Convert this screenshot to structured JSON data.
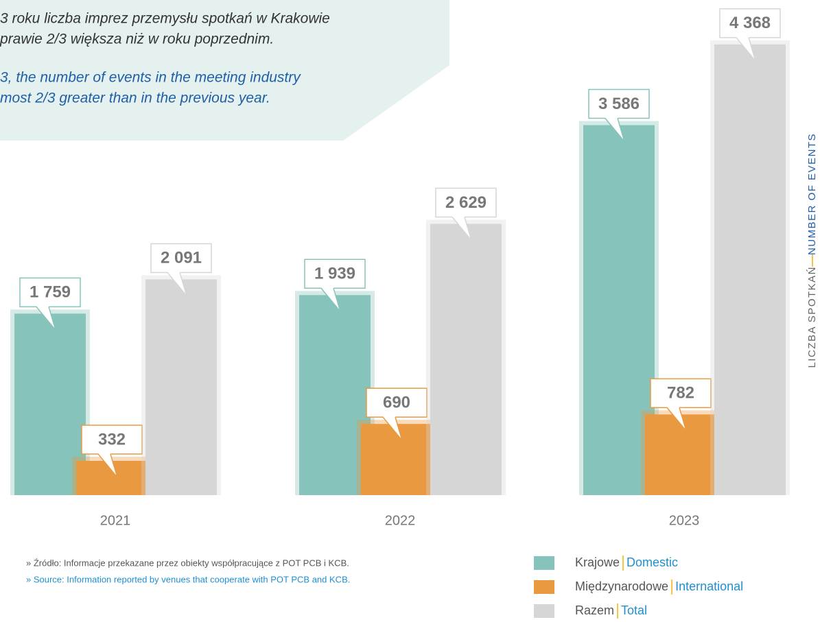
{
  "chart_data": {
    "type": "bar",
    "annotations": [
      "3 roku liczba imprez przemysłu spotkań w Krakowie",
      "prawie 2/3 większa niż w roku poprzednim.",
      "3,  the number of events in the meeting industry",
      "most 2/3 greater than in the previous year."
    ],
    "ylabel": "LICZBA SPOTKAŃ",
    "ylabel_en": "NUMBER OF EVENTS",
    "categories": [
      "2021",
      "2022",
      "2023"
    ],
    "series": [
      {
        "name": "Krajowe",
        "name_en": "Domestic",
        "color": "#86c3bb",
        "values": [
          1759,
          1939,
          3586
        ],
        "value_labels": [
          "1 759",
          "1 939",
          "3 586"
        ]
      },
      {
        "name": "Międzynarodowe",
        "name_en": "International",
        "color": "#e9993f",
        "values": [
          332,
          690,
          782
        ],
        "value_labels": [
          "332",
          "690",
          "782"
        ]
      },
      {
        "name": "Razem",
        "name_en": "Total",
        "color": "#d6d6d6",
        "values": [
          2091,
          2629,
          4368
        ],
        "value_labels": [
          "2 091",
          "2 629",
          "4 368"
        ]
      }
    ],
    "ylim": [
      0,
      4400
    ],
    "source": [
      "»  Źródło: Informacje przekazane przez obiekty współpracujące z POT PCB i KCB.",
      "»  Source: Information reported by venues that cooperate with POT PCB and KCB."
    ]
  }
}
